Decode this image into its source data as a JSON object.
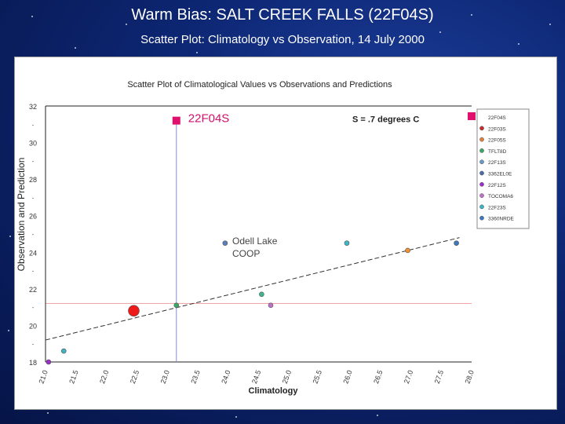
{
  "slide": {
    "title": "Warm Bias: SALT CREEK FALLS (22F04S)",
    "subtitle": "Scatter Plot: Climatology vs Observation, 14 July 2000"
  },
  "chart_data": {
    "type": "scatter",
    "title": "Scatter Plot of Climatological Values vs Observations and Predictions",
    "xlabel": "Climatology",
    "ylabel": "Observation and Prediction",
    "xlim": [
      21.0,
      28.0
    ],
    "ylim": [
      18,
      32
    ],
    "x_ticks": [
      "21.0",
      "21.5",
      "22.0",
      "22.5",
      "23.0",
      "23.5",
      "24.0",
      "24.5",
      "25.0",
      "25.5",
      "26.0",
      "26.5",
      "27.0",
      "27.5",
      "28.0"
    ],
    "y_ticks": [
      "18",
      "20",
      "22",
      "24",
      "26",
      "28",
      "30",
      "32"
    ],
    "annotations": {
      "station": "22F04S",
      "stat": "S = .7 degrees C",
      "outlier": [
        "Odell Lake",
        "COOP"
      ]
    },
    "highlight": {
      "x": 23.15,
      "y": 31.2,
      "color": "#e0106e"
    },
    "points": [
      {
        "x": 21.05,
        "y": 18.0,
        "color": "#9a30c8"
      },
      {
        "x": 21.3,
        "y": 18.6,
        "color": "#3ab3c4"
      },
      {
        "x": 22.45,
        "y": 20.8,
        "color": "#ee1a1a",
        "large": true
      },
      {
        "x": 23.15,
        "y": 21.1,
        "color": "#3aa865"
      },
      {
        "x": 23.95,
        "y": 24.5,
        "color": "#5a7fc0"
      },
      {
        "x": 24.55,
        "y": 21.7,
        "color": "#3fb58a"
      },
      {
        "x": 24.7,
        "y": 21.1,
        "color": "#c070c8"
      },
      {
        "x": 25.95,
        "y": 24.5,
        "color": "#3abac8"
      },
      {
        "x": 26.95,
        "y": 24.1,
        "color": "#f39030"
      },
      {
        "x": 27.75,
        "y": 24.5,
        "color": "#3a78c0"
      }
    ],
    "trendline": {
      "x": [
        21.0,
        27.8
      ],
      "y": [
        19.2,
        24.8
      ]
    },
    "legend": {
      "placement": "right",
      "entries": [
        {
          "label": "22F04S",
          "color": "#e0106e"
        },
        {
          "label": "22F03S",
          "color": "#c03030"
        },
        {
          "label": "22F05S",
          "color": "#e0803a"
        },
        {
          "label": "TFLT8D",
          "color": "#3aa865"
        },
        {
          "label": "22F13S",
          "color": "#6a9aca"
        },
        {
          "label": "3362EL0E",
          "color": "#4a6aa8"
        },
        {
          "label": "22F12S",
          "color": "#9a30c8"
        },
        {
          "label": "TOCOMA6",
          "color": "#c070c8"
        },
        {
          "label": "22F23S",
          "color": "#3ab3c4"
        },
        {
          "label": "3360NRDE",
          "color": "#3a78c0"
        }
      ]
    },
    "grid": false
  }
}
